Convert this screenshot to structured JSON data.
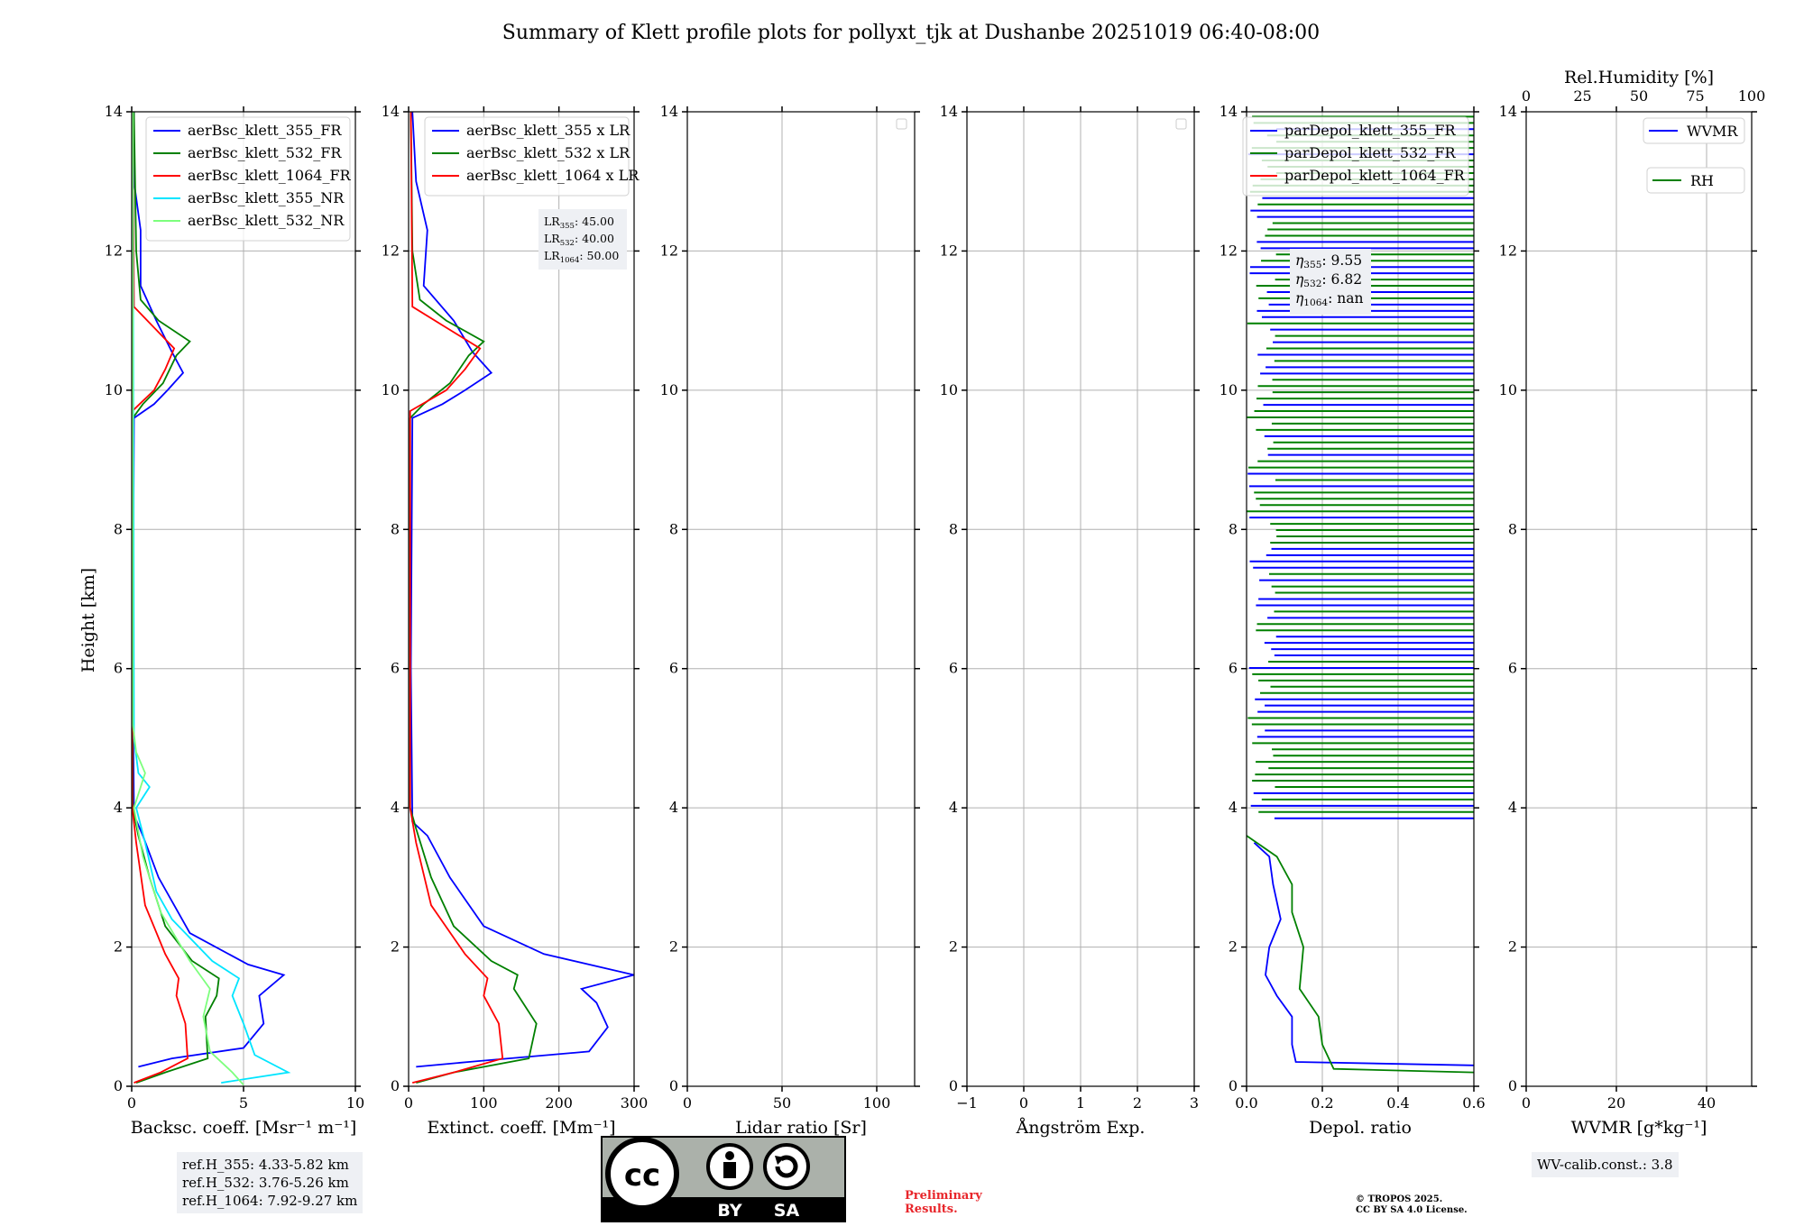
{
  "title": "Summary of Klett profile plots for pollyxt_tjk at Dushanbe 20251019 06:40-08:00",
  "colors": {
    "c355": "#0000ff",
    "c532": "#008000",
    "c1064": "#ff0000",
    "c355nr": "#00e5ff",
    "c532nr": "#7dff7d"
  },
  "chart_data": [
    {
      "type": "line",
      "xlabel": "Backsc. coeff. [Msr⁻¹ m⁻¹]",
      "ylabel": "Height [km]",
      "xlim": [
        0,
        10
      ],
      "ylim": [
        0,
        14
      ],
      "xticks": [
        "0",
        "5",
        "10"
      ],
      "yticks": [
        "0",
        "2",
        "4",
        "6",
        "8",
        "10",
        "12",
        "14"
      ],
      "grid": true,
      "legend": "top-right",
      "series": [
        {
          "name": "aerBsc_klett_355_FR",
          "color": "#0000ff",
          "points": [
            [
              0.3,
              0.28
            ],
            [
              1.8,
              0.4
            ],
            [
              5.0,
              0.55
            ],
            [
              5.9,
              0.9
            ],
            [
              5.7,
              1.3
            ],
            [
              6.8,
              1.6
            ],
            [
              5.2,
              1.75
            ],
            [
              2.6,
              2.2
            ],
            [
              1.2,
              3.0
            ],
            [
              0.5,
              3.6
            ],
            [
              0.1,
              3.9
            ],
            [
              0.05,
              6
            ],
            [
              0.1,
              9.6
            ],
            [
              1.0,
              9.8
            ],
            [
              1.6,
              10.0
            ],
            [
              2.3,
              10.25
            ],
            [
              1.8,
              10.55
            ],
            [
              1.1,
              11.0
            ],
            [
              0.4,
              11.5
            ],
            [
              0.4,
              12.3
            ],
            [
              0.1,
              13
            ],
            [
              0.1,
              14
            ]
          ]
        },
        {
          "name": "aerBsc_klett_532_FR",
          "color": "#008000",
          "points": [
            [
              0.2,
              0.05
            ],
            [
              1.5,
              0.2
            ],
            [
              3.4,
              0.4
            ],
            [
              3.3,
              1.0
            ],
            [
              3.8,
              1.3
            ],
            [
              3.9,
              1.55
            ],
            [
              2.7,
              1.8
            ],
            [
              1.5,
              2.3
            ],
            [
              0.8,
              3.0
            ],
            [
              0.3,
              3.6
            ],
            [
              0.05,
              4.0
            ],
            [
              0.05,
              9.6
            ],
            [
              0.5,
              9.8
            ],
            [
              1.4,
              10.1
            ],
            [
              2.0,
              10.5
            ],
            [
              2.6,
              10.7
            ],
            [
              1.2,
              11.0
            ],
            [
              0.4,
              11.3
            ],
            [
              0.2,
              12
            ],
            [
              0.1,
              14
            ]
          ]
        },
        {
          "name": "aerBsc_klett_1064_FR",
          "color": "#ff0000",
          "points": [
            [
              0.1,
              0.05
            ],
            [
              1.3,
              0.2
            ],
            [
              2.5,
              0.4
            ],
            [
              2.4,
              0.9
            ],
            [
              2.0,
              1.3
            ],
            [
              2.1,
              1.55
            ],
            [
              1.5,
              1.9
            ],
            [
              0.6,
              2.6
            ],
            [
              0.2,
              3.5
            ],
            [
              0.03,
              4.0
            ],
            [
              0.03,
              9.7
            ],
            [
              1.0,
              10.0
            ],
            [
              1.5,
              10.3
            ],
            [
              1.9,
              10.6
            ],
            [
              1.0,
              10.9
            ],
            [
              0.1,
              11.2
            ],
            [
              0.05,
              14
            ]
          ]
        },
        {
          "name": "aerBsc_klett_355_NR",
          "color": "#00e5ff",
          "points": [
            [
              4.0,
              0.05
            ],
            [
              7.0,
              0.2
            ],
            [
              5.5,
              0.45
            ],
            [
              5.0,
              0.9
            ],
            [
              4.5,
              1.3
            ],
            [
              4.8,
              1.55
            ],
            [
              3.6,
              1.8
            ],
            [
              1.8,
              2.4
            ],
            [
              1.1,
              2.8
            ],
            [
              0.6,
              3.5
            ],
            [
              0.2,
              4.0
            ],
            [
              0.8,
              4.3
            ],
            [
              0.3,
              4.5
            ],
            [
              0.1,
              5
            ],
            [
              0.05,
              14
            ]
          ]
        },
        {
          "name": "aerBsc_klett_532_NR",
          "color": "#7dff7d",
          "points": [
            [
              5.0,
              0.02
            ],
            [
              4.5,
              0.2
            ],
            [
              3.5,
              0.5
            ],
            [
              3.2,
              1.0
            ],
            [
              3.5,
              1.4
            ],
            [
              2.6,
              1.8
            ],
            [
              1.3,
              2.5
            ],
            [
              0.5,
              3.3
            ],
            [
              0.1,
              4.0
            ],
            [
              0.6,
              4.5
            ],
            [
              0.2,
              4.8
            ],
            [
              0.05,
              5.2
            ],
            [
              0.05,
              14
            ]
          ]
        }
      ]
    },
    {
      "type": "line",
      "xlabel": "Extinct. coeff. [Mm⁻¹]",
      "xlim": [
        0,
        300
      ],
      "ylim": [
        0,
        14
      ],
      "xticks": [
        "0",
        "100",
        "200",
        "300"
      ],
      "yticks": [
        "0",
        "2",
        "4",
        "6",
        "8",
        "10",
        "12",
        "14"
      ],
      "grid": true,
      "legend": "top-right",
      "annotation": [
        "LR355: 45.00",
        "LR532: 40.00",
        "LR1064: 50.00"
      ],
      "series": [
        {
          "name": "aerBsc_klett_355 x LR",
          "color": "#0000ff",
          "points": [
            [
              10,
              0.28
            ],
            [
              80,
              0.35
            ],
            [
              240,
              0.5
            ],
            [
              265,
              0.85
            ],
            [
              250,
              1.2
            ],
            [
              230,
              1.4
            ],
            [
              300,
              1.6
            ],
            [
              180,
              1.9
            ],
            [
              100,
              2.3
            ],
            [
              55,
              3.0
            ],
            [
              25,
              3.6
            ],
            [
              5,
              3.8
            ],
            [
              3,
              6
            ],
            [
              5,
              9.6
            ],
            [
              45,
              9.8
            ],
            [
              75,
              10.0
            ],
            [
              110,
              10.25
            ],
            [
              85,
              10.55
            ],
            [
              60,
              11.0
            ],
            [
              20,
              11.5
            ],
            [
              25,
              12.3
            ],
            [
              10,
              13
            ],
            [
              5,
              14
            ]
          ]
        },
        {
          "name": "aerBsc_klett_532 x LR",
          "color": "#008000",
          "points": [
            [
              10,
              0.05
            ],
            [
              60,
              0.2
            ],
            [
              160,
              0.4
            ],
            [
              170,
              0.9
            ],
            [
              140,
              1.4
            ],
            [
              145,
              1.6
            ],
            [
              110,
              1.8
            ],
            [
              60,
              2.3
            ],
            [
              30,
              3.0
            ],
            [
              10,
              3.7
            ],
            [
              2,
              4.0
            ],
            [
              2,
              9.6
            ],
            [
              20,
              9.8
            ],
            [
              55,
              10.1
            ],
            [
              80,
              10.5
            ],
            [
              100,
              10.7
            ],
            [
              50,
              11.0
            ],
            [
              15,
              11.3
            ],
            [
              5,
              12
            ],
            [
              3,
              14
            ]
          ]
        },
        {
          "name": "aerBsc_klett_1064 x LR",
          "color": "#ff0000",
          "points": [
            [
              5,
              0.05
            ],
            [
              60,
              0.2
            ],
            [
              125,
              0.4
            ],
            [
              120,
              0.9
            ],
            [
              100,
              1.3
            ],
            [
              105,
              1.55
            ],
            [
              75,
              1.9
            ],
            [
              30,
              2.6
            ],
            [
              10,
              3.5
            ],
            [
              2,
              4.0
            ],
            [
              2,
              9.7
            ],
            [
              50,
              10.0
            ],
            [
              75,
              10.3
            ],
            [
              95,
              10.6
            ],
            [
              50,
              10.9
            ],
            [
              5,
              11.2
            ],
            [
              3,
              14
            ]
          ]
        }
      ]
    },
    {
      "type": "line",
      "xlabel": "Lidar ratio [Sr]",
      "xlim": [
        0,
        120
      ],
      "ylim": [
        0,
        14
      ],
      "xticks": [
        "0",
        "50",
        "100"
      ],
      "yticks": [
        "0",
        "2",
        "4",
        "6",
        "8",
        "10",
        "12",
        "14"
      ],
      "grid": true,
      "legend": "top-right",
      "series": []
    },
    {
      "type": "line",
      "xlabel": "Ångström Exp.",
      "xlim": [
        -1,
        3
      ],
      "ylim": [
        0,
        14
      ],
      "xticks": [
        "−1",
        "0",
        "1",
        "2",
        "3"
      ],
      "yticks": [
        "0",
        "2",
        "4",
        "6",
        "8",
        "10",
        "12",
        "14"
      ],
      "grid": true,
      "legend": "top-right",
      "series": []
    },
    {
      "type": "line",
      "xlabel": "Depol. ratio",
      "xlim": [
        0,
        0.6
      ],
      "ylim": [
        0,
        14
      ],
      "xticks": [
        "0.0",
        "0.2",
        "0.4",
        "0.6"
      ],
      "yticks": [
        "0",
        "2",
        "4",
        "6",
        "8",
        "10",
        "12",
        "14"
      ],
      "grid": true,
      "legend": "top-right",
      "annotation": [
        "η355: 9.55",
        "η532: 6.82",
        "η1064: nan"
      ],
      "series": [
        {
          "name": "parDepol_klett_355_FR",
          "color": "#0000ff",
          "points": [
            [
              0.6,
              0.3
            ],
            [
              0.13,
              0.35
            ],
            [
              0.12,
              0.6
            ],
            [
              0.12,
              1.0
            ],
            [
              0.08,
              1.3
            ],
            [
              0.05,
              1.6
            ],
            [
              0.06,
              2.0
            ],
            [
              0.09,
              2.4
            ],
            [
              0.07,
              2.9
            ],
            [
              0.06,
              3.3
            ],
            [
              0.02,
              3.5
            ]
          ]
        },
        {
          "name": "parDepol_klett_532_FR",
          "color": "#008000",
          "points": [
            [
              0.6,
              0.2
            ],
            [
              0.23,
              0.25
            ],
            [
              0.2,
              0.6
            ],
            [
              0.19,
              1.0
            ],
            [
              0.14,
              1.4
            ],
            [
              0.15,
              2.0
            ],
            [
              0.12,
              2.5
            ],
            [
              0.12,
              2.9
            ],
            [
              0.08,
              3.3
            ],
            [
              0.0,
              3.6
            ]
          ]
        },
        {
          "name": "parDepol_klett_1064_FR",
          "color": "#ff0000",
          "points": []
        }
      ]
    },
    {
      "type": "line",
      "xlabel": "WVMR [g*kg⁻¹]",
      "xlim": [
        0,
        50
      ],
      "ylim": [
        0,
        14
      ],
      "xticks": [
        "0",
        "20",
        "40"
      ],
      "yticks": [
        "0",
        "2",
        "4",
        "6",
        "8",
        "10",
        "12",
        "14"
      ],
      "top_axis": {
        "label": "Rel.Humidity [%]",
        "ticks": [
          "0",
          "25",
          "50",
          "75",
          "100"
        ]
      },
      "grid": true,
      "legend": "top-right",
      "series": [
        {
          "name": "WVMR",
          "color": "#0000ff",
          "points": []
        },
        {
          "name": "RH",
          "color": "#008000",
          "points": []
        }
      ]
    }
  ],
  "ref_heights": [
    "ref.H_355: 4.33-5.82 km",
    "ref.H_532: 3.76-5.26 km",
    "ref.H_1064: 7.92-9.27 km"
  ],
  "wv_calib": "WV-calib.const.: 3.8",
  "license_badge": {
    "by": "BY",
    "sa": "SA"
  },
  "preliminary": [
    "Preliminary",
    "Results."
  ],
  "copyright": [
    "© TROPOS 2025.",
    "CC BY SA 4.0 License."
  ]
}
